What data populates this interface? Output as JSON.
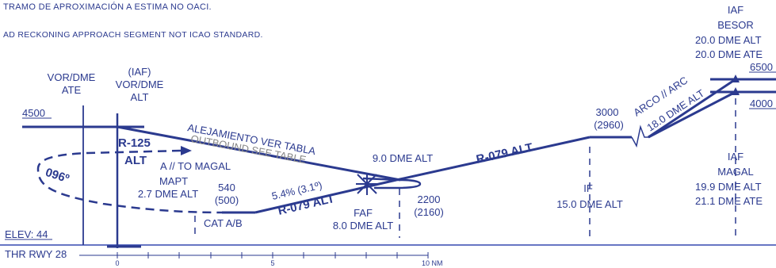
{
  "notes": {
    "es": "TRAMO DE APROXIMACIÓN A ESTIMA NO OACI.",
    "en": "AD RECKONING APPROACH SEGMENT NOT ICAO STANDARD."
  },
  "colors": {
    "ink": "#2b3a8f",
    "ground": "#3548b0"
  },
  "labels": {
    "vor_dme_title": "VOR/DME",
    "vor_ident": "ATE",
    "iaf_paren": "(IAF)",
    "iaf_vor_dme": "VOR/DME",
    "iaf_alt": "ALT",
    "alt_4500": "4500",
    "r125": "R-125",
    "r125_alt": "ALT",
    "to_magal": "A // TO MAGAL",
    "course_096": "096º",
    "outbound_es": "ALEJAMIENTO VER TABLA",
    "outbound_en": "OUTBOUND SEE TABLE",
    "mapt": "MAPT",
    "mapt_dme": "2.7 DME ALT",
    "mapt_alt": "540",
    "mapt_height": "(500)",
    "cat": "CAT A/B",
    "gradient": "5.4% (3.1º)",
    "r079_low": "R-079 ALT",
    "faf": "FAF",
    "faf_dme": "8.0 DME ALT",
    "faf_alt": "2200",
    "faf_height": "(2160)",
    "dme9": "9.0 DME ALT",
    "r079_high": "R-079 ALT",
    "if_label": "IF",
    "if_dme": "15.0 DME ALT",
    "if_alt": "3000",
    "if_height": "(2960)",
    "arc_label": "ARCO // ARC",
    "arc_dme": "18.0 DME ALT",
    "iaf_top": "IAF",
    "besor": "BESOR",
    "besor_dme1": "20.0 DME ALT",
    "besor_dme2": "20.0 DME ATE",
    "alt_6500": "6500",
    "alt_4000": "4000",
    "iaf_bottom": "IAF",
    "magal": "MAGAL",
    "magal_dme1": "19.9 DME ALT",
    "magal_dme2": "21.1 DME ATE",
    "elev": "ELEV: 44",
    "thr": "THR RWY 28"
  },
  "scale": {
    "ticks": [
      "0",
      "5",
      "10 NM"
    ]
  }
}
